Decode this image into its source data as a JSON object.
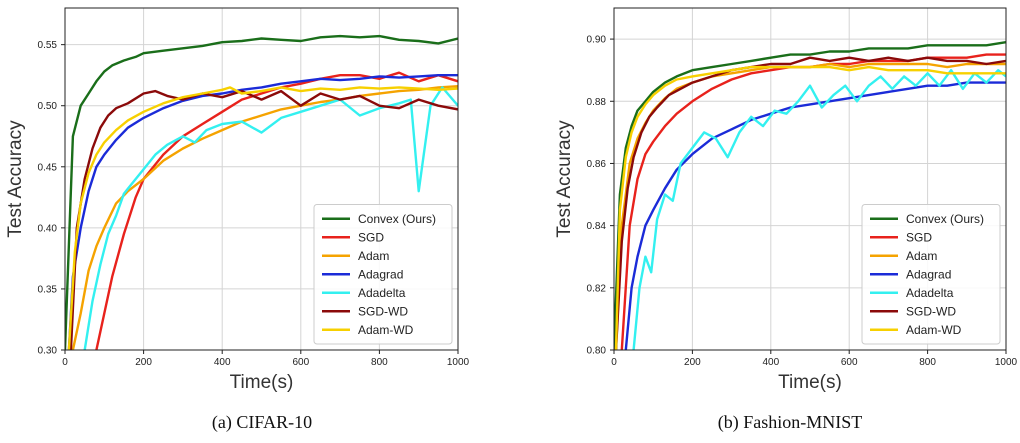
{
  "chart_data": [
    {
      "type": "line",
      "caption": "(a) CIFAR-10",
      "xlabel": "Time(s)",
      "ylabel": "Test Accuracy",
      "xlim": [
        0,
        1000
      ],
      "ylim": [
        0.3,
        0.58
      ],
      "xticks": [
        0,
        200,
        400,
        600,
        800,
        1000
      ],
      "xtick_labels": [
        "0",
        "200",
        "400",
        "600",
        "800",
        "1000"
      ],
      "yticks": [
        0.3,
        0.35,
        0.4,
        0.45,
        0.5,
        0.55
      ],
      "ytick_labels": [
        "0.30",
        "0.35",
        "0.40",
        "0.45",
        "0.50",
        "0.55"
      ],
      "grid": true,
      "legend_position": "bottom-right",
      "series": [
        {
          "name": "Convex (Ours)",
          "color": "#1a6e1a",
          "x": [
            0,
            20,
            40,
            60,
            80,
            100,
            120,
            150,
            180,
            200,
            250,
            300,
            350,
            400,
            450,
            500,
            550,
            600,
            650,
            700,
            750,
            800,
            850,
            900,
            950,
            1000
          ],
          "y": [
            0.3,
            0.475,
            0.5,
            0.51,
            0.52,
            0.528,
            0.533,
            0.537,
            0.54,
            0.543,
            0.545,
            0.547,
            0.549,
            0.552,
            0.553,
            0.555,
            0.554,
            0.553,
            0.556,
            0.557,
            0.556,
            0.557,
            0.554,
            0.553,
            0.551,
            0.555
          ]
        },
        {
          "name": "SGD",
          "color": "#e8221c",
          "x": [
            80,
            100,
            120,
            150,
            180,
            200,
            250,
            300,
            350,
            400,
            450,
            500,
            550,
            600,
            650,
            700,
            750,
            800,
            850,
            900,
            950,
            1000
          ],
          "y": [
            0.3,
            0.33,
            0.36,
            0.395,
            0.425,
            0.44,
            0.46,
            0.475,
            0.485,
            0.495,
            0.505,
            0.51,
            0.515,
            0.518,
            0.522,
            0.525,
            0.525,
            0.522,
            0.527,
            0.52,
            0.525,
            0.52
          ]
        },
        {
          "name": "Adam",
          "color": "#f5a300",
          "x": [
            20,
            40,
            60,
            80,
            100,
            130,
            160,
            200,
            250,
            300,
            350,
            400,
            450,
            500,
            550,
            600,
            650,
            700,
            750,
            800,
            850,
            900,
            950,
            1000
          ],
          "y": [
            0.3,
            0.33,
            0.365,
            0.385,
            0.4,
            0.42,
            0.43,
            0.44,
            0.455,
            0.465,
            0.473,
            0.48,
            0.487,
            0.492,
            0.497,
            0.5,
            0.503,
            0.505,
            0.508,
            0.51,
            0.512,
            0.513,
            0.515,
            0.516
          ]
        },
        {
          "name": "Adagrad",
          "color": "#1b2bd8",
          "x": [
            10,
            20,
            40,
            60,
            80,
            100,
            130,
            160,
            200,
            250,
            300,
            350,
            400,
            450,
            500,
            550,
            600,
            650,
            700,
            750,
            800,
            850,
            900,
            950,
            1000
          ],
          "y": [
            0.3,
            0.36,
            0.4,
            0.43,
            0.45,
            0.46,
            0.472,
            0.482,
            0.49,
            0.498,
            0.504,
            0.508,
            0.51,
            0.513,
            0.515,
            0.518,
            0.52,
            0.522,
            0.521,
            0.522,
            0.524,
            0.523,
            0.524,
            0.525,
            0.525
          ]
        },
        {
          "name": "Adadelta",
          "color": "#33f0f0",
          "x": [
            50,
            70,
            90,
            110,
            130,
            150,
            180,
            200,
            230,
            260,
            300,
            330,
            360,
            400,
            450,
            500,
            550,
            600,
            650,
            700,
            750,
            800,
            850,
            880,
            900,
            930,
            960,
            1000
          ],
          "y": [
            0.3,
            0.34,
            0.37,
            0.395,
            0.41,
            0.428,
            0.44,
            0.448,
            0.46,
            0.468,
            0.475,
            0.47,
            0.48,
            0.485,
            0.487,
            0.478,
            0.49,
            0.495,
            0.5,
            0.505,
            0.492,
            0.498,
            0.502,
            0.505,
            0.43,
            0.5,
            0.515,
            0.5
          ]
        },
        {
          "name": "SGD-WD",
          "color": "#8b0a0a",
          "x": [
            15,
            30,
            50,
            70,
            90,
            110,
            130,
            160,
            200,
            230,
            260,
            300,
            350,
            400,
            450,
            500,
            550,
            600,
            650,
            700,
            750,
            800,
            850,
            900,
            950,
            1000
          ],
          "y": [
            0.3,
            0.4,
            0.44,
            0.465,
            0.482,
            0.492,
            0.498,
            0.502,
            0.51,
            0.512,
            0.508,
            0.505,
            0.51,
            0.507,
            0.512,
            0.505,
            0.512,
            0.5,
            0.51,
            0.505,
            0.508,
            0.5,
            0.498,
            0.505,
            0.5,
            0.497
          ]
        },
        {
          "name": "Adam-WD",
          "color": "#f7d000",
          "x": [
            10,
            25,
            40,
            60,
            80,
            100,
            130,
            160,
            200,
            250,
            300,
            350,
            400,
            420,
            450,
            500,
            550,
            600,
            650,
            700,
            750,
            800,
            850,
            900,
            950,
            1000
          ],
          "y": [
            0.3,
            0.38,
            0.42,
            0.445,
            0.46,
            0.47,
            0.48,
            0.488,
            0.495,
            0.502,
            0.507,
            0.51,
            0.513,
            0.515,
            0.51,
            0.512,
            0.515,
            0.512,
            0.514,
            0.513,
            0.515,
            0.514,
            0.515,
            0.514,
            0.513,
            0.514
          ]
        }
      ]
    },
    {
      "type": "line",
      "caption": "(b) Fashion-MNIST",
      "xlabel": "Time(s)",
      "ylabel": "Test Accuracy",
      "xlim": [
        0,
        1000
      ],
      "ylim": [
        0.8,
        0.91
      ],
      "xticks": [
        0,
        200,
        400,
        600,
        800,
        1000
      ],
      "xtick_labels": [
        "0",
        "200",
        "400",
        "600",
        "800",
        "1000"
      ],
      "yticks": [
        0.8,
        0.82,
        0.84,
        0.86,
        0.88,
        0.9
      ],
      "ytick_labels": [
        "0.80",
        "0.82",
        "0.84",
        "0.86",
        "0.88",
        "0.90"
      ],
      "grid": true,
      "legend_position": "bottom-right",
      "series": [
        {
          "name": "Convex (Ours)",
          "color": "#1a6e1a",
          "x": [
            0,
            15,
            30,
            45,
            60,
            80,
            100,
            130,
            160,
            200,
            250,
            300,
            350,
            400,
            450,
            500,
            550,
            600,
            650,
            700,
            750,
            800,
            850,
            900,
            950,
            1000
          ],
          "y": [
            0.8,
            0.85,
            0.865,
            0.872,
            0.877,
            0.88,
            0.883,
            0.886,
            0.888,
            0.89,
            0.891,
            0.892,
            0.893,
            0.894,
            0.895,
            0.895,
            0.896,
            0.896,
            0.897,
            0.897,
            0.897,
            0.898,
            0.898,
            0.898,
            0.898,
            0.899
          ]
        },
        {
          "name": "SGD",
          "color": "#e8221c",
          "x": [
            20,
            40,
            60,
            80,
            100,
            130,
            160,
            200,
            250,
            300,
            350,
            400,
            450,
            500,
            550,
            600,
            650,
            700,
            750,
            800,
            850,
            900,
            950,
            1000
          ],
          "y": [
            0.8,
            0.84,
            0.855,
            0.863,
            0.867,
            0.872,
            0.876,
            0.88,
            0.884,
            0.887,
            0.889,
            0.89,
            0.891,
            0.891,
            0.892,
            0.892,
            0.893,
            0.893,
            0.893,
            0.894,
            0.894,
            0.894,
            0.895,
            0.895
          ]
        },
        {
          "name": "Adam",
          "color": "#f5a300",
          "x": [
            5,
            20,
            40,
            60,
            80,
            100,
            130,
            160,
            200,
            250,
            300,
            350,
            400,
            450,
            500,
            550,
            600,
            650,
            700,
            750,
            800,
            850,
            900,
            950,
            1000
          ],
          "y": [
            0.8,
            0.84,
            0.86,
            0.868,
            0.873,
            0.877,
            0.881,
            0.884,
            0.886,
            0.888,
            0.889,
            0.89,
            0.891,
            0.891,
            0.891,
            0.892,
            0.891,
            0.892,
            0.892,
            0.892,
            0.892,
            0.891,
            0.892,
            0.892,
            0.892
          ]
        },
        {
          "name": "Adagrad",
          "color": "#1b2bd8",
          "x": [
            30,
            45,
            60,
            80,
            100,
            130,
            160,
            200,
            250,
            300,
            350,
            400,
            450,
            500,
            550,
            600,
            650,
            700,
            750,
            800,
            850,
            900,
            950,
            1000
          ],
          "y": [
            0.8,
            0.82,
            0.83,
            0.84,
            0.845,
            0.852,
            0.858,
            0.863,
            0.868,
            0.871,
            0.874,
            0.876,
            0.878,
            0.879,
            0.88,
            0.881,
            0.882,
            0.883,
            0.884,
            0.885,
            0.885,
            0.886,
            0.886,
            0.886
          ]
        },
        {
          "name": "Adadelta",
          "color": "#33f0f0",
          "x": [
            50,
            65,
            80,
            95,
            110,
            130,
            150,
            170,
            200,
            230,
            260,
            290,
            320,
            350,
            380,
            410,
            440,
            470,
            500,
            530,
            560,
            590,
            620,
            650,
            680,
            710,
            740,
            770,
            800,
            830,
            860,
            890,
            920,
            950,
            980,
            1000
          ],
          "y": [
            0.8,
            0.82,
            0.83,
            0.825,
            0.842,
            0.85,
            0.848,
            0.86,
            0.865,
            0.87,
            0.868,
            0.862,
            0.87,
            0.875,
            0.872,
            0.877,
            0.876,
            0.88,
            0.885,
            0.878,
            0.882,
            0.885,
            0.88,
            0.885,
            0.888,
            0.884,
            0.888,
            0.885,
            0.889,
            0.885,
            0.89,
            0.884,
            0.889,
            0.886,
            0.89,
            0.888
          ]
        },
        {
          "name": "SGD-WD",
          "color": "#8b0a0a",
          "x": [
            5,
            20,
            35,
            50,
            70,
            90,
            110,
            140,
            170,
            200,
            250,
            300,
            350,
            400,
            450,
            500,
            550,
            600,
            650,
            700,
            750,
            800,
            850,
            900,
            950,
            1000
          ],
          "y": [
            0.8,
            0.835,
            0.852,
            0.862,
            0.87,
            0.875,
            0.878,
            0.882,
            0.884,
            0.886,
            0.888,
            0.89,
            0.891,
            0.892,
            0.892,
            0.894,
            0.893,
            0.894,
            0.893,
            0.894,
            0.893,
            0.894,
            0.893,
            0.893,
            0.892,
            0.893
          ]
        },
        {
          "name": "Adam-WD",
          "color": "#f7d000",
          "x": [
            5,
            15,
            30,
            45,
            60,
            80,
            100,
            130,
            160,
            200,
            250,
            300,
            350,
            400,
            450,
            500,
            550,
            600,
            650,
            700,
            750,
            800,
            850,
            900,
            950,
            1000
          ],
          "y": [
            0.8,
            0.845,
            0.862,
            0.87,
            0.875,
            0.879,
            0.882,
            0.885,
            0.887,
            0.888,
            0.889,
            0.89,
            0.891,
            0.891,
            0.891,
            0.891,
            0.891,
            0.89,
            0.891,
            0.89,
            0.89,
            0.89,
            0.889,
            0.889,
            0.889,
            0.889
          ]
        }
      ]
    }
  ]
}
